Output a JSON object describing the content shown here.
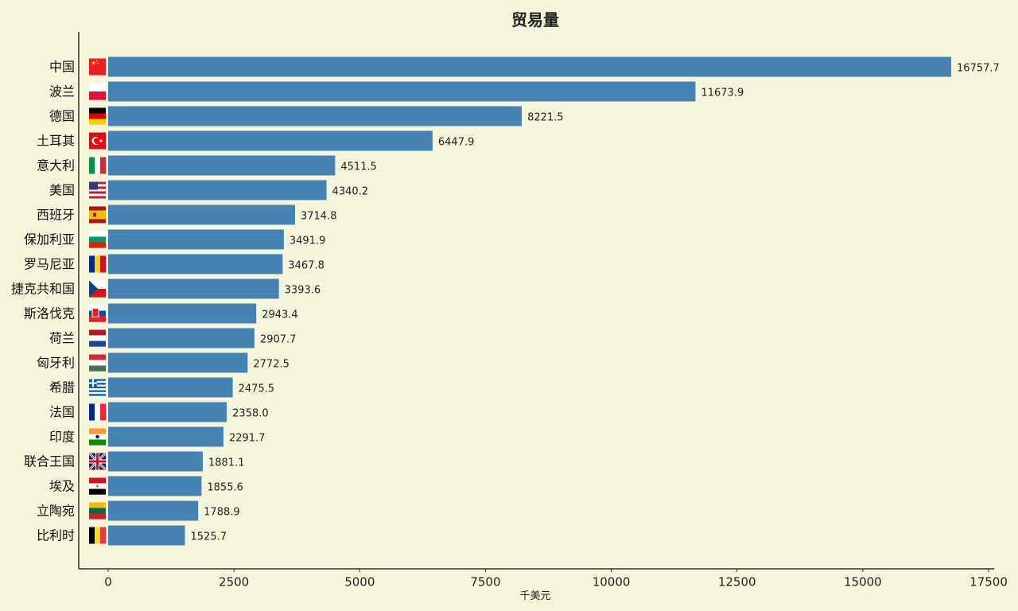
{
  "chart_data": {
    "type": "bar",
    "orientation": "horizontal",
    "title": "贸易量",
    "xlabel": "千美元",
    "ylabel": "",
    "xlim": [
      0,
      17500
    ],
    "xticks": [
      0,
      2500,
      5000,
      7500,
      10000,
      12500,
      15000,
      17500
    ],
    "grid": false,
    "legend": "none",
    "colors": {
      "bar": "#4682b4",
      "background": "#f5f5dc",
      "axis": "#333333"
    },
    "categories": [
      "中国",
      "波兰",
      "德国",
      "土耳其",
      "意大利",
      "美国",
      "西班牙",
      "保加利亚",
      "罗马尼亚",
      "捷克共和国",
      "斯洛伐克",
      "荷兰",
      "匈牙利",
      "希腊",
      "法国",
      "印度",
      "联合王国",
      "埃及",
      "立陶宛",
      "比利时"
    ],
    "values": [
      16757.7,
      11673.9,
      8221.5,
      6447.9,
      4511.5,
      4340.2,
      3714.8,
      3491.9,
      3467.8,
      3393.6,
      2943.4,
      2907.7,
      2772.5,
      2475.5,
      2358.0,
      2291.7,
      1881.1,
      1855.6,
      1788.9,
      1525.7
    ],
    "value_labels": [
      "16757.7",
      "11673.9",
      "8221.5",
      "6447.9",
      "4511.5",
      "4340.2",
      "3714.8",
      "3491.9",
      "3467.8",
      "3393.6",
      "2943.4",
      "2907.7",
      "2772.5",
      "2475.5",
      "2358.0",
      "2291.7",
      "1881.1",
      "1855.6",
      "1788.9",
      "1525.7"
    ],
    "flag_icons": [
      "flag-cn-icon",
      "flag-pl-icon",
      "flag-de-icon",
      "flag-tr-icon",
      "flag-it-icon",
      "flag-us-icon",
      "flag-es-icon",
      "flag-bg-icon",
      "flag-ro-icon",
      "flag-cz-icon",
      "flag-sk-icon",
      "flag-nl-icon",
      "flag-hu-icon",
      "flag-gr-icon",
      "flag-fr-icon",
      "flag-in-icon",
      "flag-gb-icon",
      "flag-eg-icon",
      "flag-lt-icon",
      "flag-be-icon"
    ]
  }
}
